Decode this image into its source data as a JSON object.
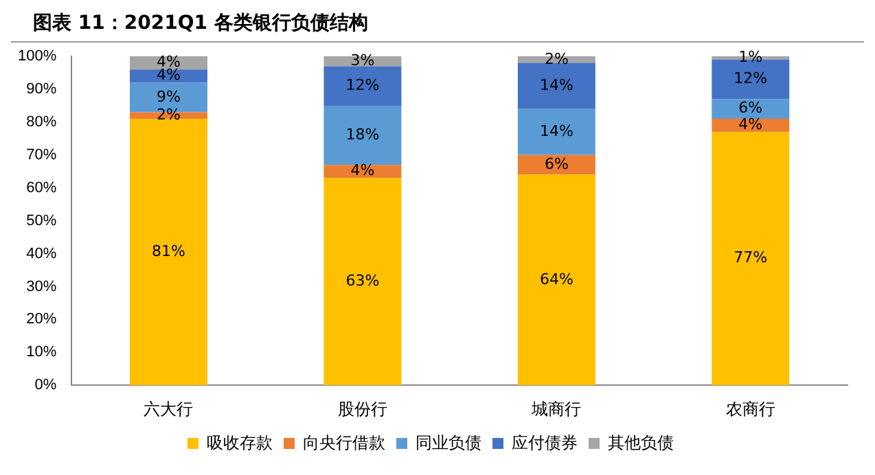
{
  "chart_data": {
    "type": "bar",
    "stacked": true,
    "title": "图表 11：2021Q1 各类银行负债结构",
    "categories": [
      "六大行",
      "股份行",
      "城商行",
      "农商行"
    ],
    "series": [
      {
        "name": "吸收存款",
        "color": "#ffc000",
        "values": [
          81,
          63,
          64,
          77
        ],
        "value_labels": [
          "81%",
          "63%",
          "64%",
          "77%"
        ]
      },
      {
        "name": "向央行借款",
        "color": "#ed7d31",
        "values": [
          2,
          4,
          6,
          4
        ],
        "value_labels": [
          "2%",
          "4%",
          "6%",
          "4%"
        ]
      },
      {
        "name": "同业负债",
        "color": "#5b9bd5",
        "values": [
          9,
          18,
          14,
          6
        ],
        "value_labels": [
          "9%",
          "18%",
          "14%",
          "6%"
        ]
      },
      {
        "name": "应付债券",
        "color": "#4472c4",
        "values": [
          4,
          12,
          14,
          12
        ],
        "value_labels": [
          "4%",
          "12%",
          "14%",
          "12%"
        ]
      },
      {
        "name": "其他负债",
        "color": "#a5a5a5",
        "values": [
          4,
          3,
          2,
          1
        ],
        "value_labels": [
          "4%",
          "3%",
          "2%",
          "1%"
        ]
      }
    ],
    "ylim": [
      0,
      100
    ],
    "yticks": [
      {
        "value": 0,
        "label": "0%"
      },
      {
        "value": 10,
        "label": "10%"
      },
      {
        "value": 20,
        "label": "20%"
      },
      {
        "value": 30,
        "label": "30%"
      },
      {
        "value": 40,
        "label": "40%"
      },
      {
        "value": 50,
        "label": "50%"
      },
      {
        "value": 60,
        "label": "60%"
      },
      {
        "value": 70,
        "label": "70%"
      },
      {
        "value": 80,
        "label": "80%"
      },
      {
        "value": 90,
        "label": "90%"
      },
      {
        "value": 100,
        "label": "100%"
      }
    ],
    "grid": false,
    "legend": "bottom"
  }
}
